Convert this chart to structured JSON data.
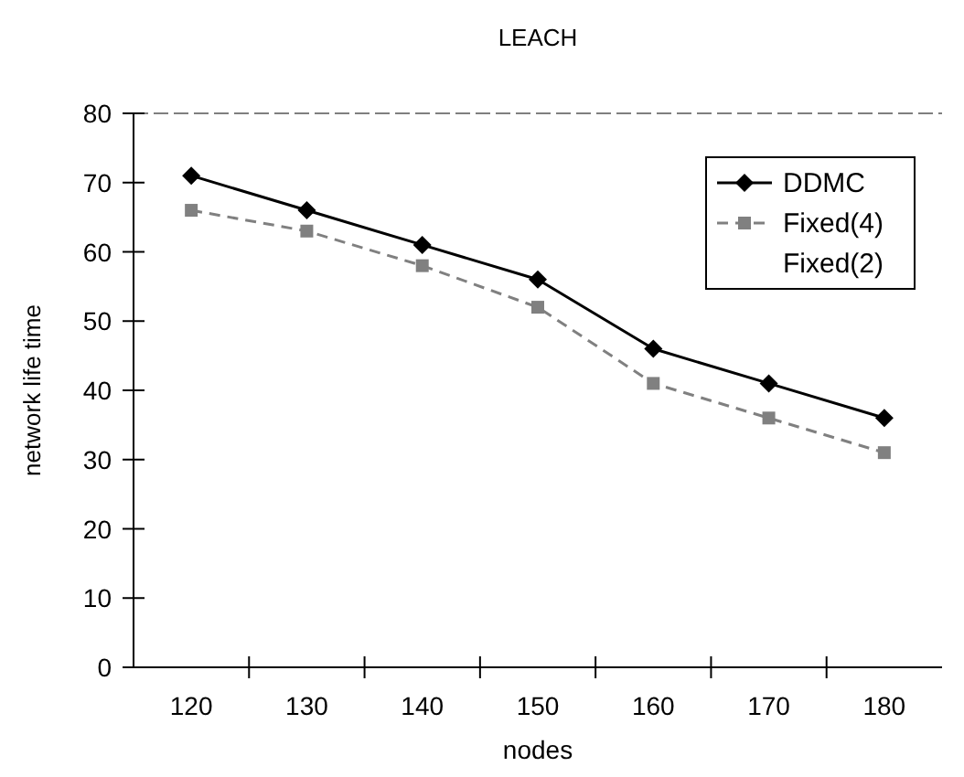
{
  "chart_data": {
    "type": "line",
    "title": "LEACH",
    "xlabel": "nodes",
    "ylabel": "network life time",
    "categories": [
      "120",
      "130",
      "140",
      "150",
      "160",
      "170",
      "180"
    ],
    "ylim": [
      0,
      80
    ],
    "yticks": [
      0,
      10,
      20,
      30,
      40,
      50,
      60,
      70,
      80
    ],
    "legend": "top right",
    "series": [
      {
        "name": "DDMC",
        "color": "#000000",
        "marker": "diamond",
        "line_style": "solid",
        "values": [
          71,
          66,
          61,
          56,
          46,
          41,
          36
        ]
      },
      {
        "name": "Fixed(4)",
        "color": "#808080",
        "marker": "square",
        "line_style": "dashed",
        "values": [
          66,
          63,
          58,
          52,
          41,
          36,
          31
        ]
      },
      {
        "name": "Fixed(2)",
        "marker": "none",
        "line_style": "solid",
        "values": [
          null,
          null,
          null,
          null,
          null,
          null,
          null
        ]
      }
    ]
  }
}
